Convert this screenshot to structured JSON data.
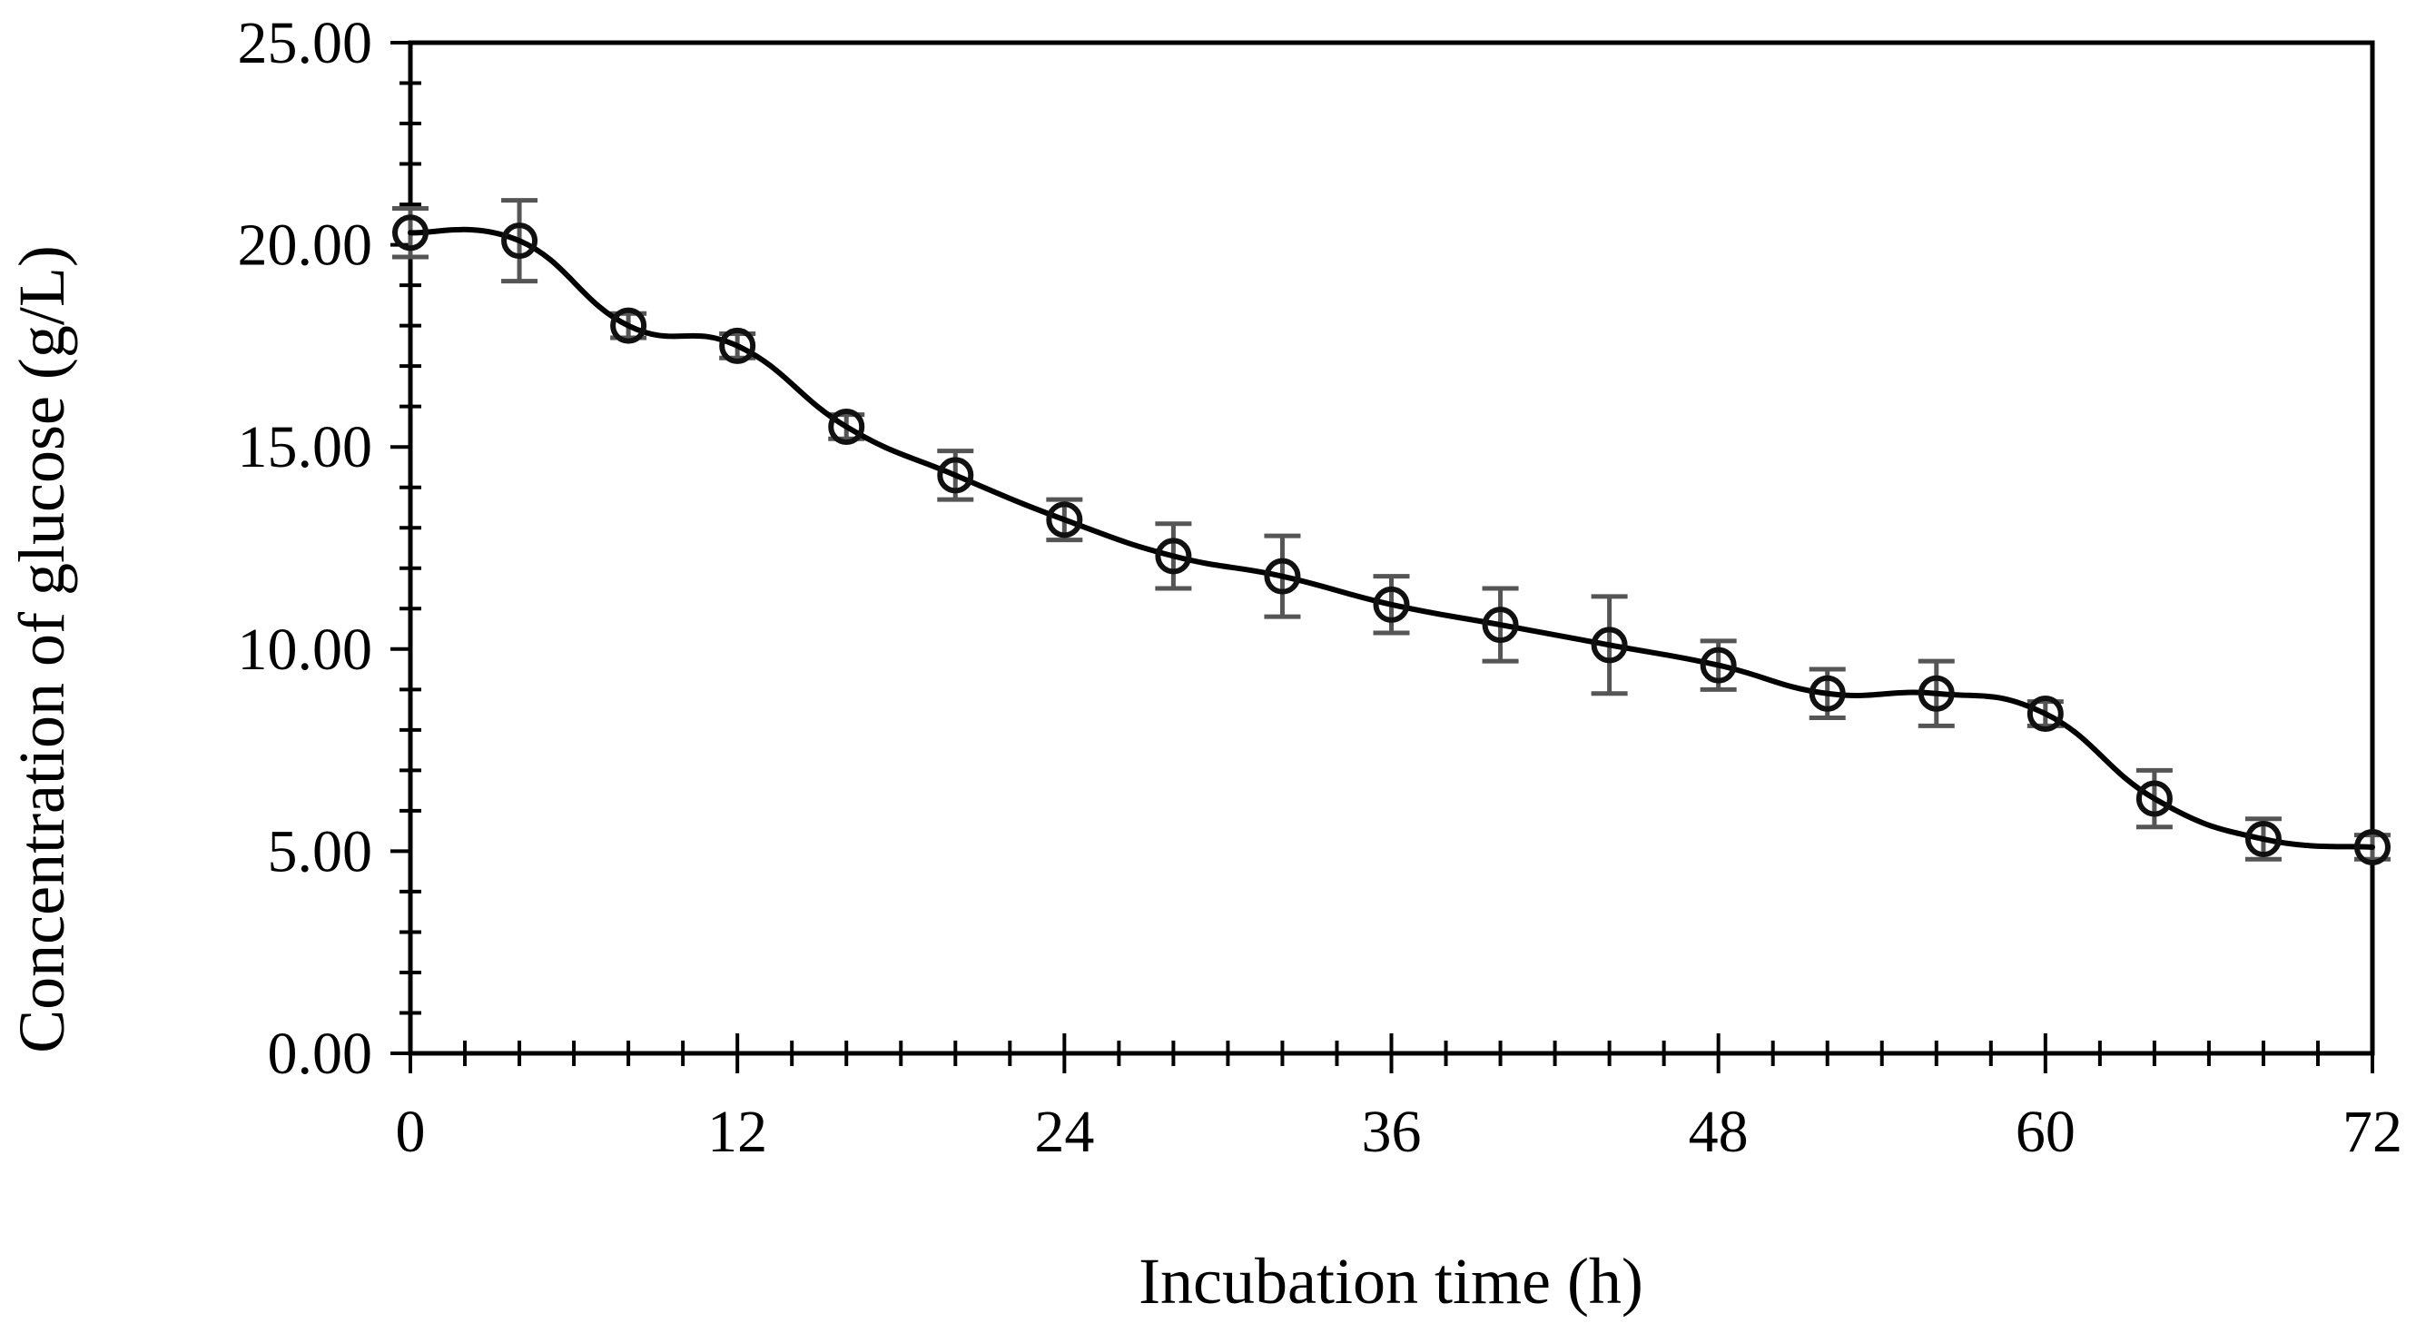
{
  "chart_data": {
    "type": "line",
    "title": "",
    "xlabel": "Incubation time (h)",
    "ylabel": "Concentration of glucose (g/L)",
    "xlim": [
      0,
      72
    ],
    "ylim": [
      0,
      25
    ],
    "x_ticks": [
      0,
      12,
      24,
      36,
      48,
      60,
      72
    ],
    "x_tick_labels": [
      "0",
      "12",
      "24",
      "36",
      "48",
      "60",
      "72"
    ],
    "x_minor_step": 2,
    "y_ticks": [
      0,
      5,
      10,
      15,
      20,
      25
    ],
    "y_tick_labels": [
      "0.00",
      "5.00",
      "10.00",
      "15.00",
      "20.00",
      "25.00"
    ],
    "y_minor_step": 1,
    "grid": false,
    "legend": "none",
    "series": [
      {
        "name": "Glucose",
        "x": [
          0,
          4,
          8,
          12,
          16,
          20,
          24,
          28,
          32,
          36,
          40,
          44,
          48,
          52,
          56,
          60,
          64,
          68,
          72
        ],
        "values": [
          20.3,
          20.1,
          18.0,
          17.5,
          15.5,
          14.3,
          13.2,
          12.3,
          11.8,
          11.1,
          10.6,
          10.1,
          9.6,
          8.9,
          8.9,
          8.4,
          6.3,
          5.3,
          5.1
        ],
        "errors": [
          0.6,
          1.0,
          0.3,
          0.3,
          0.3,
          0.6,
          0.5,
          0.8,
          1.0,
          0.7,
          0.9,
          1.2,
          0.6,
          0.6,
          0.8,
          0.3,
          0.7,
          0.5,
          0.3
        ]
      }
    ],
    "colors": {
      "line": "#000000",
      "marker_edge": "#111111",
      "error_bar": "#555555",
      "axis": "#000000"
    }
  }
}
